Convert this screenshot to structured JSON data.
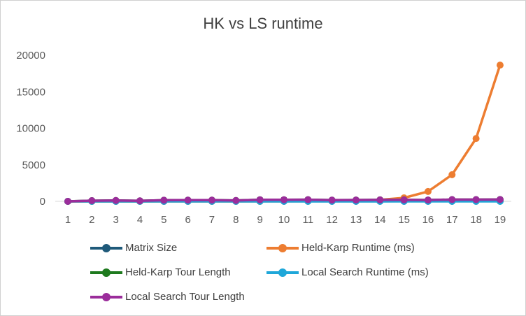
{
  "chart_data": {
    "type": "line",
    "title": "HK vs LS runtime",
    "xlabel": "",
    "ylabel": "",
    "categories": [
      "1",
      "2",
      "3",
      "4",
      "5",
      "6",
      "7",
      "8",
      "9",
      "10",
      "11",
      "12",
      "13",
      "14",
      "15",
      "16",
      "17",
      "18",
      "19"
    ],
    "ylim": [
      0,
      20000
    ],
    "yticks": [
      0,
      5000,
      10000,
      15000,
      20000
    ],
    "grid": false,
    "legend_position": "bottom",
    "series": [
      {
        "name": "Matrix Size",
        "color": "#1f5a7a",
        "values": [
          1,
          2,
          3,
          4,
          5,
          6,
          7,
          8,
          9,
          10,
          11,
          12,
          13,
          14,
          15,
          16,
          17,
          18,
          19
        ]
      },
      {
        "name": "Held-Karp Runtime (ms)",
        "color": "#ed7d31",
        "values": [
          0,
          0,
          0,
          0,
          0,
          1,
          1,
          2,
          5,
          10,
          20,
          45,
          90,
          200,
          480,
          1350,
          3650,
          8600,
          18650
        ]
      },
      {
        "name": "Held-Karp Tour Length",
        "color": "#1e7a1e",
        "values": [
          0,
          90,
          120,
          70,
          150,
          170,
          170,
          120,
          220,
          220,
          230,
          170,
          180,
          200,
          200,
          180,
          240,
          240,
          250
        ]
      },
      {
        "name": "Local Search Runtime (ms)",
        "color": "#1fa7d9",
        "values": [
          0,
          0,
          0,
          0,
          0,
          0,
          0,
          0,
          0,
          0,
          0,
          0,
          0,
          0,
          0,
          0,
          0,
          0,
          0
        ]
      },
      {
        "name": "Local Search Tour Length",
        "color": "#9b2d9b",
        "values": [
          0,
          90,
          120,
          70,
          150,
          170,
          170,
          120,
          220,
          220,
          230,
          170,
          180,
          200,
          200,
          180,
          240,
          240,
          250
        ]
      }
    ]
  }
}
